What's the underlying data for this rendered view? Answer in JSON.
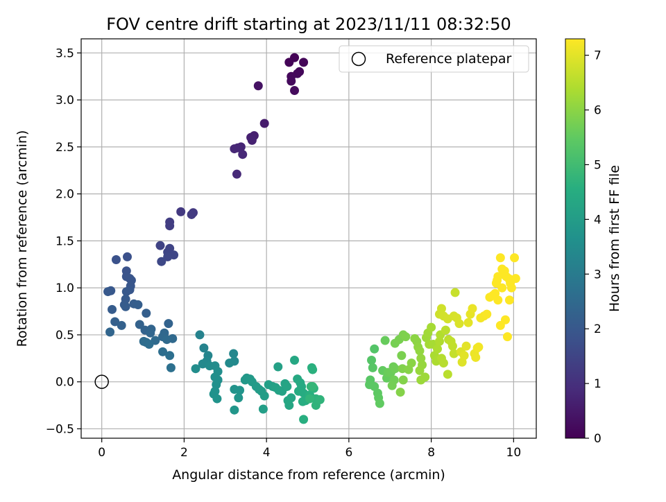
{
  "chart_data": {
    "type": "scatter",
    "title": "FOV centre drift starting at 2023/11/11 08:32:50",
    "xlabel": "Angular distance from reference (arcmin)",
    "ylabel": "Rotation from reference (arcmin)",
    "colorbar_label": "Hours from first FF file",
    "xlim": [
      -0.5,
      10.55
    ],
    "ylim": [
      -0.6,
      3.65
    ],
    "xticks": [
      0,
      2,
      4,
      6,
      8,
      10
    ],
    "yticks": [
      -0.5,
      0.0,
      0.5,
      1.0,
      1.5,
      2.0,
      2.5,
      3.0,
      3.5
    ],
    "xtick_labels": [
      "0",
      "2",
      "4",
      "6",
      "8",
      "10"
    ],
    "ytick_labels": [
      "−0.5",
      "0.0",
      "0.5",
      "1.0",
      "1.5",
      "2.0",
      "2.5",
      "3.0",
      "3.5"
    ],
    "colorbar_range": [
      0,
      7.3
    ],
    "colorbar_ticks": [
      "0",
      "1",
      "2",
      "3",
      "4",
      "5",
      "6",
      "7"
    ],
    "colormap": "viridis",
    "grid": true,
    "legend": {
      "position": "top-right",
      "label": "Reference platepar"
    },
    "reference_point": {
      "x": 0,
      "y": 0
    },
    "points": [
      [
        4.68,
        3.45,
        0.05
      ],
      [
        4.55,
        3.4,
        0.08
      ],
      [
        4.9,
        3.4,
        0.1
      ],
      [
        4.8,
        3.3,
        0.12
      ],
      [
        4.75,
        3.28,
        0.14
      ],
      [
        4.6,
        3.25,
        0.16
      ],
      [
        4.6,
        3.2,
        0.18
      ],
      [
        4.68,
        3.1,
        0.2
      ],
      [
        3.8,
        3.15,
        0.35
      ],
      [
        3.95,
        2.75,
        0.55
      ],
      [
        3.7,
        2.62,
        0.62
      ],
      [
        3.62,
        2.6,
        0.65
      ],
      [
        3.65,
        2.57,
        0.68
      ],
      [
        3.38,
        2.5,
        0.75
      ],
      [
        3.3,
        2.49,
        0.78
      ],
      [
        3.22,
        2.48,
        0.8
      ],
      [
        3.42,
        2.42,
        0.82
      ],
      [
        3.28,
        2.21,
        0.85
      ],
      [
        1.92,
        1.81,
        1.2
      ],
      [
        2.22,
        1.8,
        1.22
      ],
      [
        2.18,
        1.78,
        1.25
      ],
      [
        1.65,
        1.7,
        1.3
      ],
      [
        1.65,
        1.66,
        1.32
      ],
      [
        1.42,
        1.45,
        1.45
      ],
      [
        1.65,
        1.42,
        1.48
      ],
      [
        1.6,
        1.38,
        1.5
      ],
      [
        1.75,
        1.35,
        1.52
      ],
      [
        1.6,
        1.33,
        1.55
      ],
      [
        1.45,
        1.28,
        1.58
      ],
      [
        0.62,
        1.33,
        1.8
      ],
      [
        0.35,
        1.3,
        1.82
      ],
      [
        0.6,
        1.18,
        1.85
      ],
      [
        0.6,
        1.12,
        1.88
      ],
      [
        0.68,
        1.1,
        1.9
      ],
      [
        0.72,
        1.08,
        1.92
      ],
      [
        0.7,
        1.02,
        1.95
      ],
      [
        0.68,
        0.98,
        1.98
      ],
      [
        0.22,
        0.97,
        2.0
      ],
      [
        0.15,
        0.96,
        2.02
      ],
      [
        0.6,
        0.96,
        2.03
      ],
      [
        0.58,
        0.88,
        2.05
      ],
      [
        0.55,
        0.82,
        2.08
      ],
      [
        0.58,
        0.8,
        2.1
      ],
      [
        0.25,
        0.77,
        2.12
      ],
      [
        0.78,
        0.83,
        2.15
      ],
      [
        0.88,
        0.82,
        2.18
      ],
      [
        1.08,
        0.73,
        2.2
      ],
      [
        0.32,
        0.64,
        2.22
      ],
      [
        0.48,
        0.6,
        2.25
      ],
      [
        0.92,
        0.61,
        2.28
      ],
      [
        1.62,
        0.62,
        2.3
      ],
      [
        1.05,
        0.55,
        2.32
      ],
      [
        1.2,
        0.56,
        2.35
      ],
      [
        0.2,
        0.53,
        2.38
      ],
      [
        1.18,
        0.52,
        2.4
      ],
      [
        1.52,
        0.52,
        2.42
      ],
      [
        1.48,
        0.48,
        2.45
      ],
      [
        1.72,
        0.46,
        2.48
      ],
      [
        1.58,
        0.45,
        2.5
      ],
      [
        1.3,
        0.44,
        2.52
      ],
      [
        1.02,
        0.43,
        2.55
      ],
      [
        1.08,
        0.42,
        2.58
      ],
      [
        1.15,
        0.4,
        2.6
      ],
      [
        1.48,
        0.32,
        2.62
      ],
      [
        1.65,
        0.28,
        2.65
      ],
      [
        1.68,
        0.15,
        2.68
      ],
      [
        2.38,
        0.5,
        3.2
      ],
      [
        2.48,
        0.36,
        3.25
      ],
      [
        2.58,
        0.28,
        3.3
      ],
      [
        3.2,
        0.3,
        3.35
      ],
      [
        2.55,
        0.22,
        3.38
      ],
      [
        3.22,
        0.22,
        3.4
      ],
      [
        2.45,
        0.19,
        3.42
      ],
      [
        3.1,
        0.2,
        3.45
      ],
      [
        2.62,
        0.17,
        3.48
      ],
      [
        2.75,
        0.17,
        3.5
      ],
      [
        2.28,
        0.14,
        3.52
      ],
      [
        2.82,
        0.11,
        3.55
      ],
      [
        2.75,
        0.05,
        3.58
      ],
      [
        2.82,
        0.02,
        3.6
      ],
      [
        2.78,
        -0.03,
        3.62
      ],
      [
        2.75,
        -0.1,
        3.65
      ],
      [
        2.72,
        -0.13,
        3.68
      ],
      [
        2.8,
        -0.18,
        3.7
      ],
      [
        3.22,
        -0.08,
        3.72
      ],
      [
        3.35,
        -0.09,
        3.75
      ],
      [
        3.32,
        -0.17,
        3.78
      ],
      [
        3.22,
        -0.3,
        3.8
      ],
      [
        3.52,
        0.04,
        3.85
      ],
      [
        3.48,
        0.02,
        3.88
      ],
      [
        3.6,
        0.03,
        3.9
      ],
      [
        3.65,
        0.0,
        3.92
      ],
      [
        3.75,
        -0.05,
        3.95
      ],
      [
        3.82,
        -0.08,
        3.98
      ],
      [
        3.88,
        -0.1,
        4.0
      ],
      [
        3.95,
        -0.15,
        4.02
      ],
      [
        3.92,
        -0.29,
        4.05
      ],
      [
        4.05,
        -0.03,
        4.08
      ],
      [
        4.15,
        -0.05,
        4.1
      ],
      [
        4.28,
        0.16,
        4.12
      ],
      [
        4.22,
        -0.06,
        4.15
      ],
      [
        4.3,
        -0.09,
        4.18
      ],
      [
        4.38,
        -0.1,
        4.2
      ],
      [
        4.45,
        -0.02,
        4.22
      ],
      [
        4.5,
        -0.05,
        4.25
      ],
      [
        4.6,
        -0.17,
        4.28
      ],
      [
        4.52,
        -0.2,
        4.3
      ],
      [
        4.55,
        -0.25,
        4.32
      ],
      [
        4.68,
        0.23,
        4.35
      ],
      [
        4.75,
        0.03,
        4.38
      ],
      [
        4.82,
        -0.01,
        4.4
      ],
      [
        4.85,
        -0.05,
        4.42
      ],
      [
        4.78,
        -0.1,
        4.45
      ],
      [
        4.9,
        -0.12,
        4.48
      ],
      [
        4.95,
        -0.2,
        4.5
      ],
      [
        4.88,
        -0.21,
        4.52
      ],
      [
        4.9,
        -0.4,
        4.55
      ],
      [
        5.05,
        -0.14,
        4.58
      ],
      [
        5.1,
        0.15,
        4.6
      ],
      [
        5.12,
        0.13,
        4.62
      ],
      [
        5.15,
        -0.07,
        4.65
      ],
      [
        5.2,
        -0.18,
        4.68
      ],
      [
        5.2,
        -0.25,
        4.7
      ],
      [
        5.3,
        -0.19,
        4.72
      ],
      [
        5.05,
        -0.18,
        4.75
      ],
      [
        5.08,
        -0.05,
        4.78
      ],
      [
        5.12,
        -0.05,
        4.8
      ],
      [
        6.62,
        0.35,
        5.3
      ],
      [
        6.55,
        0.23,
        5.32
      ],
      [
        6.58,
        0.15,
        5.35
      ],
      [
        6.52,
        0.02,
        5.38
      ],
      [
        6.5,
        -0.03,
        5.4
      ],
      [
        6.62,
        -0.05,
        5.42
      ],
      [
        6.7,
        -0.12,
        5.45
      ],
      [
        6.72,
        -0.17,
        5.48
      ],
      [
        6.75,
        -0.23,
        5.5
      ],
      [
        6.82,
        0.12,
        5.52
      ],
      [
        6.92,
        0.04,
        5.55
      ],
      [
        6.88,
        0.44,
        5.58
      ],
      [
        6.95,
        0.1,
        5.6
      ],
      [
        7.02,
        0.1,
        5.62
      ],
      [
        7.08,
        0.16,
        5.65
      ],
      [
        7.12,
        0.14,
        5.68
      ],
      [
        7.1,
        0.02,
        5.7
      ],
      [
        7.05,
        -0.04,
        5.72
      ],
      [
        7.12,
        0.41,
        5.75
      ],
      [
        7.22,
        0.45,
        5.78
      ],
      [
        7.28,
        0.28,
        5.8
      ],
      [
        7.32,
        0.5,
        5.82
      ],
      [
        7.38,
        0.48,
        5.85
      ],
      [
        7.3,
        0.14,
        5.88
      ],
      [
        7.32,
        0.02,
        5.9
      ],
      [
        7.25,
        -0.11,
        5.92
      ],
      [
        7.45,
        0.13,
        5.95
      ],
      [
        7.52,
        0.2,
        5.98
      ],
      [
        7.6,
        0.46,
        6.0
      ],
      [
        7.65,
        0.43,
        6.02
      ],
      [
        7.68,
        0.37,
        6.05
      ],
      [
        7.72,
        0.33,
        6.08
      ],
      [
        7.75,
        0.25,
        6.1
      ],
      [
        7.78,
        0.18,
        6.12
      ],
      [
        7.72,
        0.12,
        6.15
      ],
      [
        7.75,
        0.02,
        6.18
      ],
      [
        7.85,
        0.05,
        6.2
      ],
      [
        7.88,
        0.47,
        6.22
      ],
      [
        7.92,
        0.52,
        6.25
      ],
      [
        7.95,
        0.4,
        6.28
      ],
      [
        8.0,
        0.58,
        6.3
      ],
      [
        8.05,
        0.4,
        6.32
      ],
      [
        8.08,
        0.28,
        6.35
      ],
      [
        8.12,
        0.22,
        6.38
      ],
      [
        8.15,
        0.35,
        6.4
      ],
      [
        8.2,
        0.43,
        6.42
      ],
      [
        8.22,
        0.5,
        6.45
      ],
      [
        8.25,
        0.25,
        6.48
      ],
      [
        8.3,
        0.2,
        6.5
      ],
      [
        8.4,
        0.08,
        6.52
      ],
      [
        8.35,
        0.55,
        6.55
      ],
      [
        8.42,
        0.45,
        6.58
      ],
      [
        8.48,
        0.43,
        6.6
      ],
      [
        8.52,
        0.38,
        6.62
      ],
      [
        8.55,
        0.3,
        6.65
      ],
      [
        8.58,
        0.95,
        6.68
      ],
      [
        8.2,
        0.72,
        6.75
      ],
      [
        8.25,
        0.78,
        6.78
      ],
      [
        8.3,
        0.7,
        6.8
      ],
      [
        8.4,
        0.67,
        6.82
      ],
      [
        8.55,
        0.7,
        6.85
      ],
      [
        8.62,
        0.68,
        6.88
      ],
      [
        8.68,
        0.62,
        6.9
      ],
      [
        8.72,
        0.32,
        6.92
      ],
      [
        8.75,
        0.21,
        6.95
      ],
      [
        8.8,
        0.28,
        6.98
      ],
      [
        8.85,
        0.38,
        7.0
      ],
      [
        8.9,
        0.63,
        7.02
      ],
      [
        8.95,
        0.72,
        7.05
      ],
      [
        9.0,
        0.78,
        7.08
      ],
      [
        9.05,
        0.3,
        7.1
      ],
      [
        9.08,
        0.26,
        7.12
      ],
      [
        9.12,
        0.36,
        7.15
      ],
      [
        9.15,
        0.37,
        7.18
      ],
      [
        9.2,
        0.68,
        7.2
      ],
      [
        9.28,
        0.7,
        7.22
      ],
      [
        9.35,
        0.72,
        7.25
      ],
      [
        9.42,
        0.9,
        7.28
      ],
      [
        9.5,
        0.92,
        7.3
      ],
      [
        9.55,
        0.94,
        7.3
      ],
      [
        9.62,
        0.87,
        7.3
      ],
      [
        9.68,
        0.6,
        7.3
      ],
      [
        9.72,
        1.0,
        7.3
      ],
      [
        9.8,
        0.66,
        7.3
      ],
      [
        9.85,
        0.48,
        7.3
      ],
      [
        9.9,
        0.87,
        7.3
      ],
      [
        9.68,
        1.32,
        7.3
      ],
      [
        9.72,
        1.2,
        7.3
      ],
      [
        9.78,
        1.18,
        7.3
      ],
      [
        9.82,
        1.12,
        7.3
      ],
      [
        9.88,
        1.1,
        7.3
      ],
      [
        9.92,
        1.05,
        7.3
      ],
      [
        9.95,
        1.0,
        7.3
      ],
      [
        10.02,
        1.32,
        7.3
      ],
      [
        10.05,
        1.1,
        7.3
      ],
      [
        9.6,
        1.08,
        7.3
      ],
      [
        9.58,
        1.05,
        7.3
      ],
      [
        9.62,
        1.12,
        7.3
      ]
    ]
  }
}
